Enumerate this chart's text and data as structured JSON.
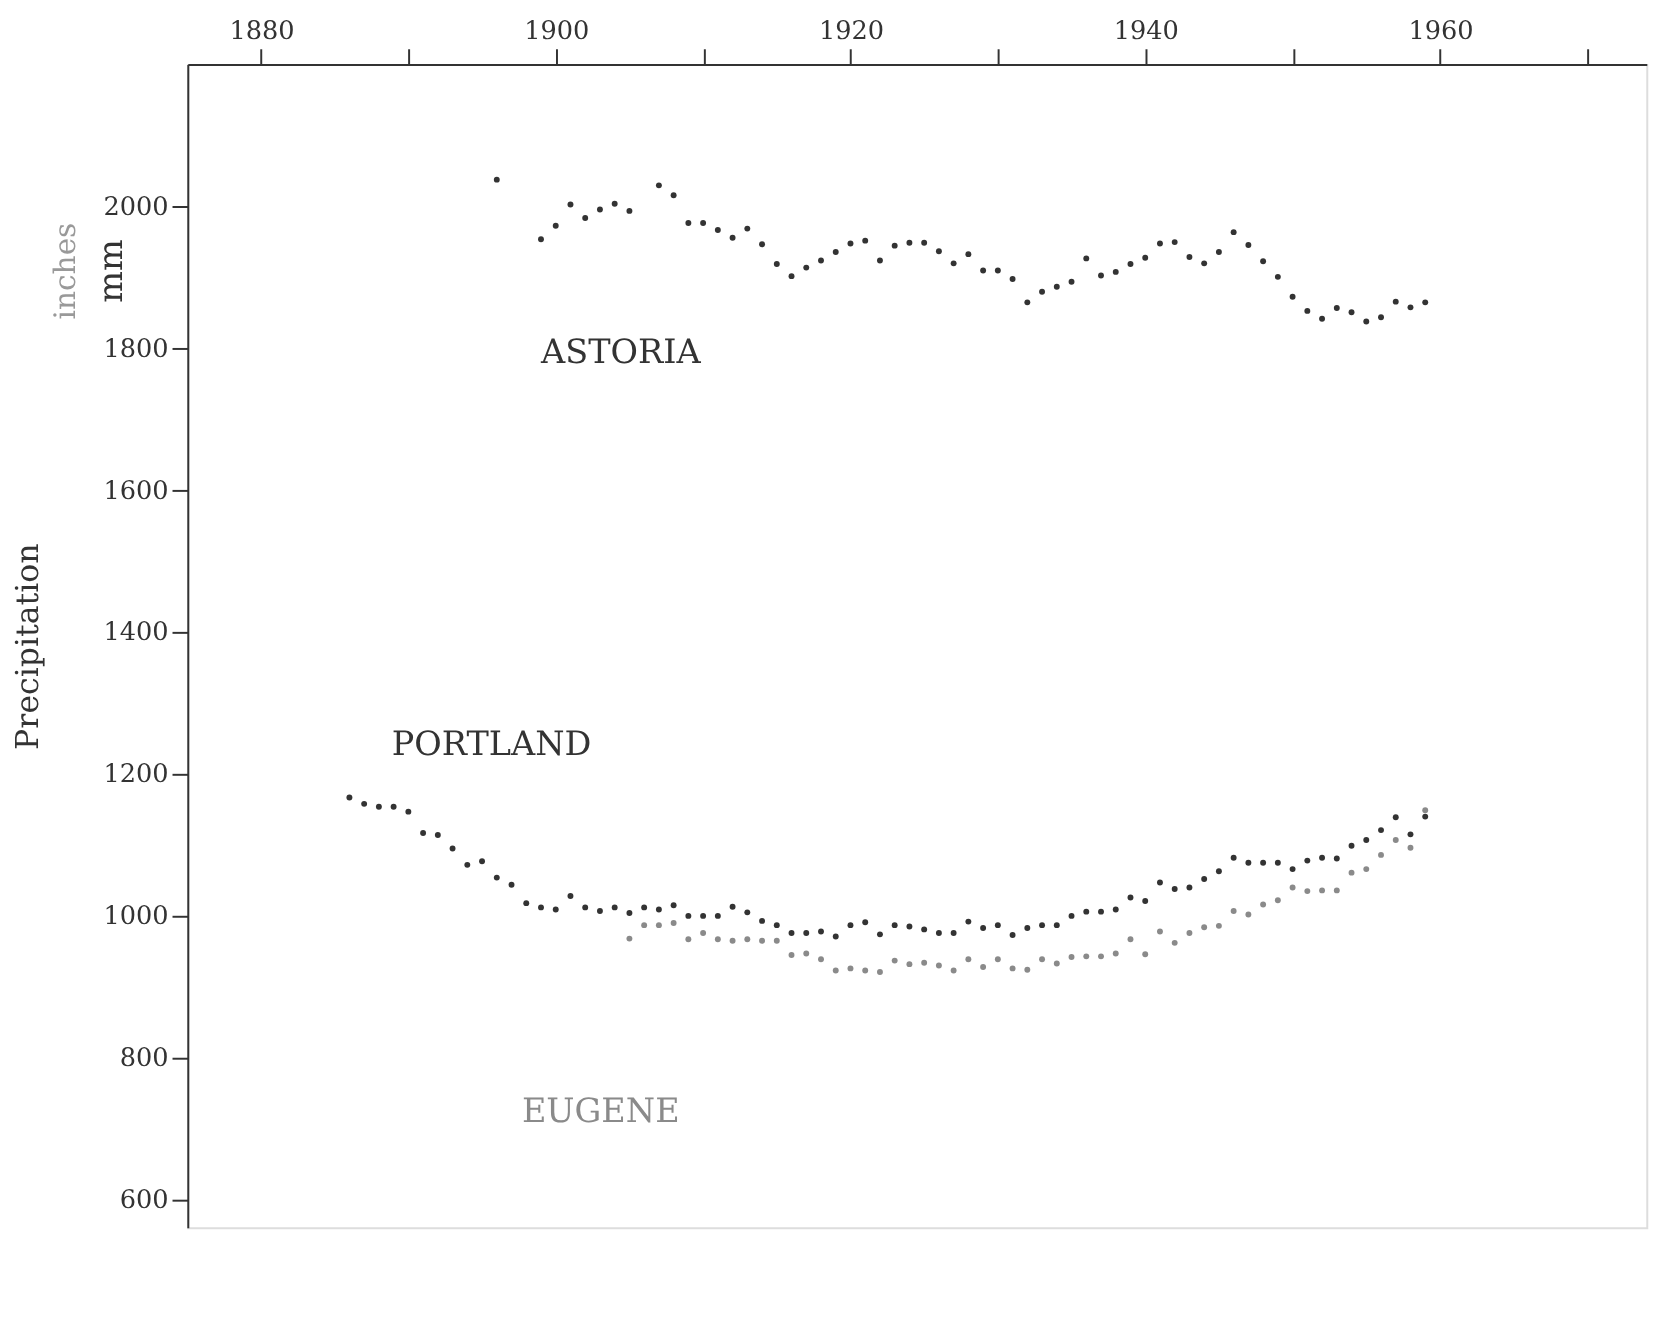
{
  "chart_data": {
    "type": "scatter",
    "ylabel": "Precipitation",
    "annotations": [
      "mm",
      "inches"
    ],
    "xlim": [
      1875,
      1974
    ],
    "xticks": [
      1880,
      {
        "value": 1890,
        "label": null
      },
      1900,
      {
        "value": 1910,
        "label": null
      },
      1920,
      {
        "value": 1930,
        "label": null
      },
      1940,
      {
        "value": 1950,
        "label": null
      },
      1960,
      {
        "value": 1970,
        "label": null
      }
    ],
    "ylim": [
      560,
      2200
    ],
    "yticks": [
      600,
      800,
      1000,
      1200,
      1400,
      1600,
      1800,
      2000
    ],
    "grid": false,
    "series": [
      {
        "name": "ASTORIA",
        "color": "#333333",
        "x": [
          1896,
          1899,
          1900,
          1901,
          1902,
          1903,
          1904,
          1905,
          1907,
          1908,
          1909,
          1910,
          1911,
          1912,
          1913,
          1914,
          1915,
          1916,
          1917,
          1918,
          1919,
          1920,
          1921,
          1922,
          1923,
          1924,
          1925,
          1926,
          1927,
          1928,
          1929,
          1930,
          1931,
          1932,
          1933,
          1934,
          1935,
          1936,
          1937,
          1938,
          1939,
          1940,
          1941,
          1942,
          1943,
          1944,
          1945,
          1946,
          1947,
          1948,
          1949,
          1950,
          1951,
          1952,
          1953,
          1954,
          1955,
          1956,
          1957,
          1958,
          1959
        ],
        "values": [
          2037,
          1953,
          1972,
          2002,
          1983,
          1995,
          2003,
          1993,
          2029,
          2015,
          1976,
          1976,
          1966,
          1955,
          1968,
          1946,
          1918,
          1901,
          1913,
          1923,
          1935,
          1947,
          1951,
          1923,
          1944,
          1948,
          1948,
          1936,
          1919,
          1932,
          1909,
          1909,
          1897,
          1864,
          1879,
          1886,
          1893,
          1926,
          1902,
          1907,
          1918,
          1927,
          1947,
          1949,
          1928,
          1919,
          1935,
          1963,
          1945,
          1922,
          1900,
          1872,
          1852,
          1841,
          1856,
          1850,
          1837,
          1843,
          1865,
          1857,
          1864
        ]
      },
      {
        "name": "PORTLAND",
        "color": "#333333",
        "x": [
          1886,
          1887,
          1888,
          1889,
          1890,
          1891,
          1892,
          1893,
          1894,
          1895,
          1896,
          1897,
          1898,
          1899,
          1900,
          1901,
          1902,
          1903,
          1904,
          1905,
          1906,
          1907,
          1908,
          1909,
          1910,
          1911,
          1912,
          1913,
          1914,
          1915,
          1916,
          1917,
          1918,
          1919,
          1920,
          1921,
          1922,
          1923,
          1924,
          1925,
          1926,
          1927,
          1928,
          1929,
          1930,
          1931,
          1932,
          1933,
          1934,
          1935,
          1936,
          1937,
          1938,
          1939,
          1940,
          1941,
          1942,
          1943,
          1944,
          1945,
          1946,
          1947,
          1948,
          1949,
          1950,
          1951,
          1952,
          1953,
          1954,
          1955,
          1956,
          1957,
          1958,
          1959
        ],
        "values": [
          1166,
          1157,
          1153,
          1153,
          1146,
          1116,
          1113,
          1094,
          1071,
          1076,
          1053,
          1043,
          1017,
          1011,
          1008,
          1027,
          1011,
          1006,
          1011,
          1003,
          1011,
          1008,
          1014,
          999,
          999,
          999,
          1012,
          1004,
          992,
          986,
          975,
          975,
          977,
          970,
          986,
          990,
          973,
          986,
          984,
          980,
          975,
          975,
          991,
          982,
          986,
          972,
          982,
          986,
          986,
          999,
          1005,
          1005,
          1008,
          1025,
          1020,
          1046,
          1037,
          1039,
          1051,
          1062,
          1081,
          1074,
          1074,
          1074,
          1065,
          1077,
          1081,
          1080,
          1098,
          1106,
          1120,
          1138,
          1114,
          1139
        ]
      },
      {
        "name": "EUGENE",
        "color": "#8a8a8a",
        "x": [
          1905,
          1906,
          1907,
          1908,
          1909,
          1910,
          1911,
          1912,
          1913,
          1914,
          1915,
          1916,
          1917,
          1918,
          1919,
          1920,
          1921,
          1922,
          1923,
          1924,
          1925,
          1926,
          1927,
          1928,
          1929,
          1930,
          1931,
          1932,
          1933,
          1934,
          1935,
          1936,
          1937,
          1938,
          1939,
          1940,
          1941,
          1942,
          1943,
          1944,
          1945,
          1946,
          1947,
          1948,
          1949,
          1950,
          1951,
          1952,
          1953,
          1954,
          1955,
          1956,
          1957,
          1958,
          1959
        ],
        "values": [
          967,
          986,
          986,
          989,
          966,
          975,
          966,
          964,
          966,
          964,
          964,
          944,
          946,
          938,
          922,
          925,
          922,
          920,
          936,
          931,
          933,
          929,
          922,
          938,
          927,
          938,
          925,
          923,
          938,
          932,
          941,
          942,
          942,
          946,
          966,
          945,
          977,
          961,
          975,
          983,
          985,
          1006,
          1001,
          1015,
          1021,
          1039,
          1034,
          1035,
          1035,
          1060,
          1065,
          1085,
          1106,
          1095,
          1148
        ]
      }
    ]
  }
}
